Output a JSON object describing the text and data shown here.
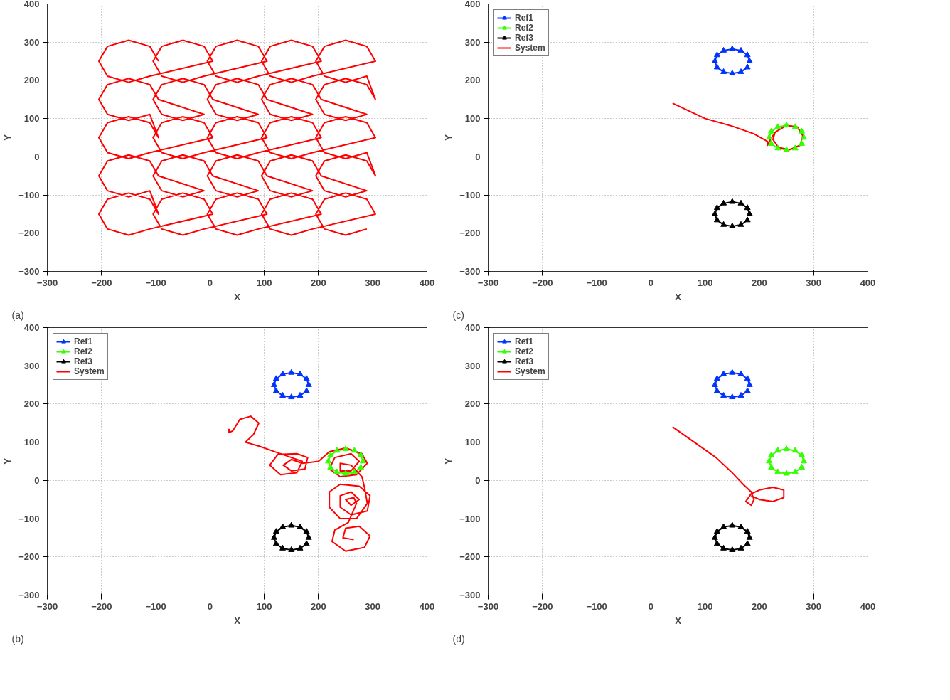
{
  "chart_data": [
    {
      "type": "line",
      "xlabel": "X",
      "ylabel": "Y",
      "xlim": [
        -300,
        400
      ],
      "ylim": [
        -300,
        400
      ],
      "xticks": [
        -300,
        -200,
        -100,
        0,
        100,
        200,
        300,
        400
      ],
      "yticks": [
        -300,
        -200,
        -100,
        0,
        100,
        200,
        300,
        400
      ],
      "grid": true,
      "legend": false,
      "annotations": [
        "(a)"
      ],
      "series": [
        {
          "color": "#ff0000",
          "marker": "none",
          "line_style": "solid",
          "x": [
            -95,
            -111,
            -150,
            -189,
            -205,
            -189,
            -150,
            -111,
            5,
            -11,
            -50,
            -89,
            -105,
            -89,
            -50,
            -11,
            105,
            89,
            50,
            11,
            -5,
            11,
            50,
            89,
            205,
            189,
            150,
            111,
            95,
            111,
            150,
            189,
            305,
            289,
            250,
            211,
            195,
            211,
            250,
            289,
            305,
            289,
            250,
            211,
            195,
            211,
            250,
            289,
            205,
            189,
            150,
            111,
            95,
            111,
            150,
            189,
            105,
            89,
            50,
            11,
            -5,
            11,
            50,
            89,
            5,
            -11,
            -50,
            -89,
            -105,
            -89,
            -50,
            -11,
            -95,
            -111,
            -150,
            -189,
            -205,
            -189,
            -150,
            -111,
            -95,
            -111,
            -150,
            -189,
            -205,
            -189,
            -150,
            -111,
            5,
            -11,
            -50,
            -89,
            -105,
            -89,
            -50,
            -11,
            105,
            89,
            50,
            11,
            -5,
            11,
            50,
            89,
            205,
            189,
            150,
            111,
            95,
            111,
            150,
            189,
            305,
            289,
            250,
            211,
            195,
            211,
            250,
            289,
            305,
            289,
            250,
            211,
            195,
            211,
            250,
            289,
            205,
            189,
            150,
            111,
            95,
            111,
            150,
            189,
            105,
            89,
            50,
            11,
            -5,
            11,
            50,
            89,
            5,
            -11,
            -50,
            -89,
            -105,
            -89,
            -50,
            -11,
            -95,
            -111,
            -150,
            -189,
            -205,
            -189,
            -150,
            -111,
            -95,
            -111,
            -150,
            -189,
            -205,
            -189,
            -150,
            -111,
            5,
            -11,
            -50,
            -89,
            -105,
            -89,
            -50,
            -11,
            105,
            89,
            50,
            11,
            -5,
            11,
            50,
            89,
            205,
            189,
            150,
            111,
            95,
            111,
            150,
            189,
            305,
            289,
            250,
            211,
            195,
            211,
            250,
            289
          ],
          "values": [
            250,
            289,
            305,
            289,
            250,
            211,
            195,
            211,
            250,
            289,
            305,
            289,
            250,
            211,
            195,
            211,
            250,
            289,
            305,
            289,
            250,
            211,
            195,
            211,
            250,
            289,
            305,
            289,
            250,
            211,
            195,
            211,
            250,
            289,
            305,
            289,
            250,
            211,
            195,
            211,
            150,
            189,
            205,
            189,
            150,
            111,
            95,
            111,
            150,
            189,
            205,
            189,
            150,
            111,
            95,
            111,
            150,
            189,
            205,
            189,
            150,
            111,
            95,
            111,
            150,
            189,
            205,
            189,
            150,
            111,
            95,
            111,
            150,
            189,
            205,
            189,
            150,
            111,
            95,
            111,
            50,
            89,
            105,
            89,
            50,
            11,
            -5,
            11,
            50,
            89,
            105,
            89,
            50,
            11,
            -5,
            11,
            50,
            89,
            105,
            89,
            50,
            11,
            -5,
            11,
            50,
            89,
            105,
            89,
            50,
            11,
            -5,
            11,
            50,
            89,
            105,
            89,
            50,
            11,
            -5,
            11,
            -50,
            -11,
            5,
            -11,
            -50,
            -89,
            -105,
            -89,
            -50,
            -11,
            5,
            -11,
            -50,
            -89,
            -105,
            -89,
            -50,
            -11,
            5,
            -11,
            -50,
            -89,
            -105,
            -89,
            -50,
            -11,
            5,
            -11,
            -50,
            -89,
            -105,
            -89,
            -50,
            -11,
            5,
            -11,
            -50,
            -89,
            -105,
            -89,
            -150,
            -111,
            -95,
            -111,
            -150,
            -189,
            -205,
            -189,
            -150,
            -111,
            -95,
            -111,
            -150,
            -189,
            -205,
            -189,
            -150,
            -111,
            -95,
            -111,
            -150,
            -189,
            -205,
            -189,
            -150,
            -111,
            -95,
            -111,
            -150,
            -189,
            -205,
            -189,
            -150,
            -111,
            -95,
            -111,
            -150,
            -189,
            -205,
            -189
          ]
        }
      ]
    },
    {
      "type": "line",
      "xlabel": "X",
      "ylabel": "Y",
      "xlim": [
        -300,
        400
      ],
      "ylim": [
        -300,
        400
      ],
      "xticks": [
        -300,
        -200,
        -100,
        0,
        100,
        200,
        300,
        400
      ],
      "yticks": [
        -300,
        -200,
        -100,
        0,
        100,
        200,
        300,
        400
      ],
      "grid": true,
      "legend": "top left",
      "annotations": [
        "(c)"
      ],
      "series": [
        {
          "name": "Ref1",
          "color": "#0033ff",
          "marker": "triangle",
          "line_style": "solid",
          "x": [
            182,
            178,
            166,
            150,
            134,
            122,
            118,
            122,
            134,
            150,
            166,
            178
          ],
          "values": [
            250,
            266,
            278,
            282,
            278,
            266,
            250,
            234,
            222,
            218,
            222,
            234
          ]
        },
        {
          "name": "Ref2",
          "color": "#33ff00",
          "marker": "triangle",
          "line_style": "solid",
          "x": [
            282,
            278,
            266,
            250,
            234,
            222,
            218,
            222,
            234,
            250,
            266,
            278
          ],
          "values": [
            50,
            66,
            78,
            82,
            78,
            66,
            50,
            34,
            22,
            18,
            22,
            34
          ]
        },
        {
          "name": "Ref3",
          "color": "#000000",
          "marker": "triangle",
          "line_style": "solid",
          "x": [
            182,
            178,
            166,
            150,
            134,
            122,
            118,
            122,
            134,
            150,
            166,
            178
          ],
          "values": [
            -150,
            -134,
            -122,
            -118,
            -122,
            -134,
            -150,
            -166,
            -178,
            -182,
            -178,
            -166
          ]
        },
        {
          "name": "System",
          "color": "#ff0000",
          "marker": "none",
          "line_style": "solid",
          "x": [
            40,
            70,
            100,
            150,
            190,
            215,
            215,
            220,
            230,
            250,
            270,
            280,
            275,
            255,
            235,
            225,
            228
          ],
          "values": [
            140,
            120,
            100,
            80,
            60,
            40,
            30,
            45,
            65,
            82,
            78,
            55,
            30,
            18,
            25,
            45,
            60
          ]
        }
      ]
    },
    {
      "type": "line",
      "xlabel": "X",
      "ylabel": "Y",
      "xlim": [
        -300,
        400
      ],
      "ylim": [
        -300,
        400
      ],
      "xticks": [
        -300,
        -200,
        -100,
        0,
        100,
        200,
        300,
        400
      ],
      "yticks": [
        -300,
        -200,
        -100,
        0,
        100,
        200,
        300,
        400
      ],
      "grid": true,
      "legend": "top left",
      "annotations": [
        "(b)"
      ],
      "series": [
        {
          "name": "Ref1",
          "color": "#0033ff",
          "marker": "triangle",
          "line_style": "solid",
          "x": [
            182,
            178,
            166,
            150,
            134,
            122,
            118,
            122,
            134,
            150,
            166,
            178
          ],
          "values": [
            250,
            266,
            278,
            282,
            278,
            266,
            250,
            234,
            222,
            218,
            222,
            234
          ]
        },
        {
          "name": "Ref2",
          "color": "#33ff00",
          "marker": "triangle",
          "line_style": "solid",
          "x": [
            282,
            278,
            266,
            250,
            234,
            222,
            218,
            222,
            234,
            250,
            266,
            278
          ],
          "values": [
            50,
            66,
            78,
            82,
            78,
            66,
            50,
            34,
            22,
            18,
            22,
            34
          ]
        },
        {
          "name": "Ref3",
          "color": "#000000",
          "marker": "triangle",
          "line_style": "solid",
          "x": [
            182,
            178,
            166,
            150,
            134,
            122,
            118,
            122,
            134,
            150,
            166,
            178
          ],
          "values": [
            -150,
            -134,
            -122,
            -118,
            -122,
            -134,
            -150,
            -166,
            -178,
            -182,
            -178,
            -166
          ]
        },
        {
          "name": "System",
          "color": "#ff0000",
          "marker": "none",
          "line_style": "solid",
          "x": [
            35,
            35,
            42,
            55,
            75,
            90,
            80,
            65,
            90,
            120,
            150,
            170,
            160,
            130,
            110,
            125,
            160,
            180,
            175,
            150,
            135,
            150,
            170,
            200,
            220,
            250,
            280,
            290,
            270,
            240,
            220,
            230,
            260,
            275,
            260,
            240,
            240,
            260,
            280,
            285,
            290,
            270,
            240,
            220,
            220,
            240,
            275,
            295,
            290,
            260,
            240,
            240,
            260,
            275,
            260,
            250,
            265,
            270,
            255,
            230,
            225,
            250,
            285,
            295,
            275,
            250,
            245,
            265
          ],
          "values": [
            135,
            125,
            130,
            160,
            168,
            150,
            120,
            100,
            90,
            75,
            60,
            50,
            20,
            15,
            40,
            68,
            70,
            60,
            30,
            25,
            40,
            55,
            45,
            50,
            75,
            85,
            70,
            45,
            15,
            10,
            30,
            60,
            70,
            50,
            25,
            25,
            45,
            40,
            10,
            -20,
            -60,
            -100,
            -100,
            -70,
            -30,
            -10,
            -15,
            -40,
            -80,
            -90,
            -70,
            -40,
            -30,
            -50,
            -65,
            -50,
            -45,
            -60,
            -110,
            -130,
            -160,
            -185,
            -175,
            -145,
            -120,
            -125,
            -150,
            -155
          ]
        }
      ]
    },
    {
      "type": "line",
      "xlabel": "X",
      "ylabel": "Y",
      "xlim": [
        -300,
        400
      ],
      "ylim": [
        -300,
        400
      ],
      "xticks": [
        -300,
        -200,
        -100,
        0,
        100,
        200,
        300,
        400
      ],
      "yticks": [
        -300,
        -200,
        -100,
        0,
        100,
        200,
        300,
        400
      ],
      "grid": true,
      "legend": "top left",
      "annotations": [
        "(d)"
      ],
      "series": [
        {
          "name": "Ref1",
          "color": "#0033ff",
          "marker": "triangle",
          "line_style": "solid",
          "x": [
            182,
            178,
            166,
            150,
            134,
            122,
            118,
            122,
            134,
            150,
            166,
            178
          ],
          "values": [
            250,
            266,
            278,
            282,
            278,
            266,
            250,
            234,
            222,
            218,
            222,
            234
          ]
        },
        {
          "name": "Ref2",
          "color": "#33ff00",
          "marker": "triangle",
          "line_style": "solid",
          "x": [
            282,
            278,
            266,
            250,
            234,
            222,
            218,
            222,
            234,
            250,
            266,
            278
          ],
          "values": [
            50,
            66,
            78,
            82,
            78,
            66,
            50,
            34,
            22,
            18,
            22,
            34
          ]
        },
        {
          "name": "Ref3",
          "color": "#000000",
          "marker": "triangle",
          "line_style": "solid",
          "x": [
            182,
            178,
            166,
            150,
            134,
            122,
            118,
            122,
            134,
            150,
            166,
            178
          ],
          "values": [
            -150,
            -134,
            -122,
            -118,
            -122,
            -134,
            -150,
            -166,
            -178,
            -182,
            -178,
            -166
          ]
        },
        {
          "name": "System",
          "color": "#ff0000",
          "marker": "none",
          "line_style": "solid",
          "x": [
            40,
            80,
            120,
            150,
            170,
            185,
            190,
            185,
            175,
            185,
            200,
            225,
            245,
            245,
            225,
            200,
            185
          ],
          "values": [
            140,
            100,
            60,
            20,
            -10,
            -30,
            -50,
            -65,
            -55,
            -35,
            -25,
            -18,
            -25,
            -45,
            -55,
            -50,
            -40
          ]
        }
      ]
    }
  ]
}
